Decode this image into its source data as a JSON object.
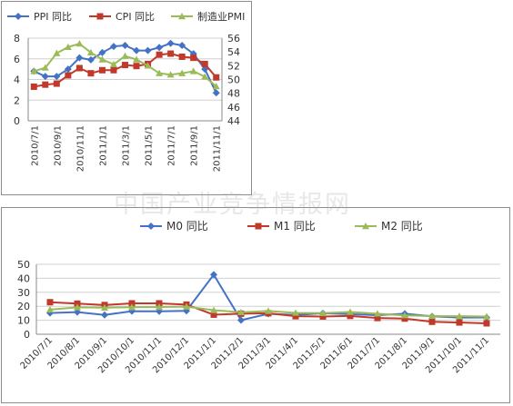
{
  "watermark": "中国产业竞争情报网",
  "chart_data": [
    {
      "type": "line",
      "legend_position": "top",
      "grid": true,
      "categories": [
        "2010/7/1",
        "2010/8/1",
        "2010/9/1",
        "2010/10/1",
        "2010/11/1",
        "2010/12/1",
        "2011/1/1",
        "2011/2/1",
        "2011/3/1",
        "2011/4/1",
        "2011/5/1",
        "2011/6/1",
        "2011/7/1",
        "2011/8/1",
        "2011/9/1",
        "2011/10/1",
        "2011/11/1"
      ],
      "tick_labels": [
        "2010/7/1",
        "2010/9/1",
        "2010/11/1",
        "2011/1/1",
        "2011/3/1",
        "2011/5/1",
        "2011/7/1",
        "2011/9/1",
        "2011/11/1"
      ],
      "left_axis": {
        "ylim": [
          0,
          8
        ],
        "ticks": [
          "0",
          "2",
          "4",
          "6",
          "8"
        ]
      },
      "right_axis": {
        "ylim": [
          44,
          56
        ],
        "ticks": [
          "44",
          "46",
          "48",
          "50",
          "52",
          "54",
          "56"
        ]
      },
      "series": [
        {
          "name": "PPI 同比",
          "axis": "left",
          "color": "#4472c4",
          "marker": "diamond",
          "values": [
            4.8,
            4.3,
            4.3,
            5.0,
            6.1,
            5.9,
            6.6,
            7.2,
            7.3,
            6.8,
            6.8,
            7.1,
            7.5,
            7.3,
            6.5,
            5.0,
            2.7
          ]
        },
        {
          "name": "CPI 同比",
          "axis": "left",
          "color": "#c0392b",
          "marker": "square",
          "values": [
            3.3,
            3.5,
            3.6,
            4.4,
            5.1,
            4.6,
            4.9,
            4.9,
            5.4,
            5.3,
            5.5,
            6.4,
            6.5,
            6.2,
            6.1,
            5.5,
            4.2
          ]
        },
        {
          "name": "制造业PMI",
          "axis": "right",
          "color": "#9bbb59",
          "marker": "triangle",
          "values": [
            51.2,
            51.7,
            53.8,
            54.7,
            55.2,
            53.9,
            52.9,
            52.2,
            53.4,
            52.9,
            52.0,
            50.9,
            50.7,
            50.9,
            51.2,
            50.4,
            49.0
          ]
        }
      ]
    },
    {
      "type": "line",
      "legend_position": "top",
      "grid": true,
      "categories": [
        "2010/7/1",
        "2010/8/1",
        "2010/9/1",
        "2010/10/1",
        "2010/11/1",
        "2010/12/1",
        "2011/1/1",
        "2011/2/1",
        "2011/3/1",
        "2011/4/1",
        "2011/5/1",
        "2011/6/1",
        "2011/7/1",
        "2011/8/1",
        "2011/9/1",
        "2011/10/1",
        "2011/11/1"
      ],
      "ylim": [
        0,
        50
      ],
      "y_ticks": [
        "0",
        "10",
        "20",
        "30",
        "40",
        "50"
      ],
      "series": [
        {
          "name": "M0 同比",
          "color": "#4472c4",
          "marker": "diamond",
          "values": [
            15.2,
            15.8,
            13.8,
            16.5,
            16.4,
            16.7,
            42.6,
            10.1,
            14.6,
            13.8,
            15.0,
            14.4,
            13.6,
            14.7,
            12.8,
            11.9,
            12.0
          ]
        },
        {
          "name": "M1 同比",
          "color": "#c0392b",
          "marker": "square",
          "values": [
            22.9,
            21.9,
            20.9,
            22.1,
            22.1,
            21.2,
            14.0,
            14.7,
            15.0,
            12.9,
            12.7,
            13.1,
            11.6,
            11.2,
            8.9,
            8.4,
            7.8
          ]
        },
        {
          "name": "M2 同比",
          "color": "#9bbb59",
          "marker": "triangle",
          "values": [
            17.6,
            19.2,
            19.0,
            19.3,
            19.5,
            19.7,
            17.2,
            15.7,
            16.6,
            15.3,
            15.1,
            15.9,
            14.7,
            13.5,
            13.0,
            12.9,
            12.7
          ]
        }
      ]
    }
  ]
}
